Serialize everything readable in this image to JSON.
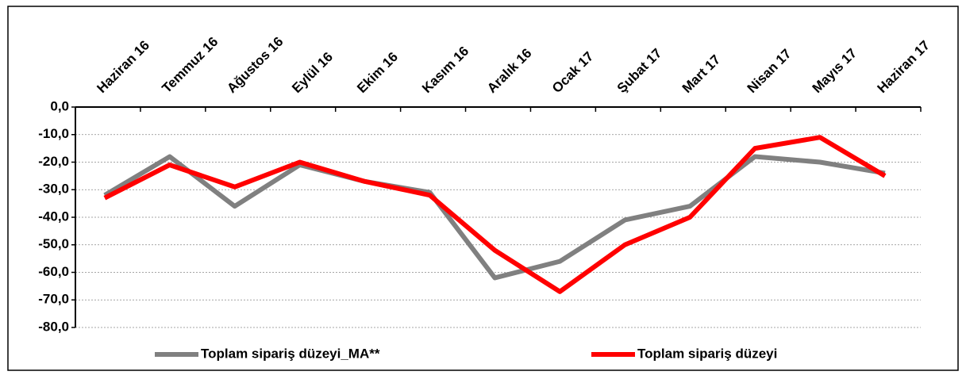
{
  "chart_data": {
    "type": "line",
    "categories": [
      "Haziran 16",
      "Temmuz 16",
      "Ağustos 16",
      "Eylül 16",
      "Ekim 16",
      "Kasım 16",
      "Aralık 16",
      "Ocak 17",
      "Şubat 17",
      "Mart 17",
      "Nisan 17",
      "Mayıs 17",
      "Haziran 17"
    ],
    "series": [
      {
        "name": "Toplam sipariş düzeyi_MA**",
        "color": "#808080",
        "values": [
          -32,
          -18,
          -36,
          -21,
          -27,
          -31,
          -62,
          -56,
          -41,
          -36,
          -18,
          -20,
          -24
        ]
      },
      {
        "name": "Toplam sipariş düzeyi",
        "color": "#ff0000",
        "values": [
          -33,
          -21,
          -29,
          -20,
          -27,
          -32,
          -52,
          -67,
          -50,
          -40,
          -15,
          -11,
          -25
        ]
      }
    ],
    "ylim": [
      -80,
      0
    ],
    "yticks": [
      {
        "value": 0,
        "label": "0,0"
      },
      {
        "value": -10,
        "label": "-10,0"
      },
      {
        "value": -20,
        "label": "-20,0"
      },
      {
        "value": -30,
        "label": "-30,0"
      },
      {
        "value": -40,
        "label": "-40,0"
      },
      {
        "value": -50,
        "label": "-50,0"
      },
      {
        "value": -60,
        "label": "-60,0"
      },
      {
        "value": -70,
        "label": "-70,0"
      },
      {
        "value": -80,
        "label": "-80,0"
      }
    ],
    "grid": true
  }
}
